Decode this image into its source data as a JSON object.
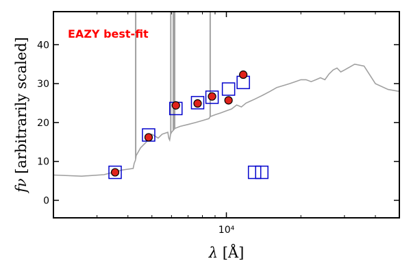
{
  "chart_data": {
    "type": "scatter",
    "title": "",
    "xlabel": "λ [Å]",
    "ylabel": "fν [arbitrarily scaled]",
    "xscale": "log",
    "xlim": [
      2000,
      50000
    ],
    "ylim": [
      -4.5,
      48.5
    ],
    "yticks": [
      0,
      10,
      20,
      30,
      40
    ],
    "xticks": [
      10000
    ],
    "xtick_labels": [
      "10⁴"
    ],
    "grid": false,
    "annotation": "EAZY best-fit",
    "colors": {
      "annotation": "#ff0000",
      "template": "#a0a0a0",
      "model": "#0000cc",
      "observed_fill": "#e0231b",
      "observed_edge": "#000000"
    },
    "series": [
      {
        "kind": "line",
        "x": [
          2000,
          2600,
          3200,
          3800,
          4200,
          4240,
          4290,
          4320,
          4500,
          4750,
          4850,
          5000,
          5300,
          5500,
          5800,
          5850,
          5900,
          5950,
          6000,
          6100,
          6200,
          6500,
          7000,
          7500,
          8000,
          8500,
          8600,
          9000,
          9500,
          10000,
          10500,
          11000,
          11500,
          12000,
          12500,
          13000,
          14000,
          15000,
          16000,
          17000,
          18000,
          19000,
          20000,
          21000,
          22000,
          23000,
          24000,
          25000,
          26000,
          27000,
          28000,
          29000,
          30000,
          33000,
          36000,
          40000,
          45000,
          50000
        ],
        "y": [
          6.5,
          6.2,
          6.6,
          7.8,
          8.2,
          9.5,
          10.3,
          11.5,
          13.5,
          15.0,
          16.0,
          17.0,
          16.0,
          17.0,
          17.5,
          16.0,
          15.5,
          17.0,
          17.5,
          18.0,
          18.5,
          19.0,
          19.5,
          20.0,
          20.5,
          21.0,
          21.5,
          22.0,
          22.5,
          23.0,
          23.5,
          24.5,
          24.0,
          25.0,
          25.5,
          26.0,
          27.0,
          28.0,
          29.0,
          29.5,
          30.0,
          30.5,
          31.0,
          31.0,
          30.5,
          31.0,
          31.5,
          31.0,
          32.5,
          33.5,
          34.0,
          33.0,
          33.5,
          35.0,
          34.5,
          30.0,
          28.5,
          28.0
        ]
      },
      {
        "kind": "emission_lines",
        "x": [
          4300,
          5960,
          6100,
          6180,
          8600
        ],
        "y": [
          48.5,
          48.5,
          48.5,
          48.5,
          48.5
        ]
      },
      {
        "kind": "model_photometry",
        "x": [
          3550,
          4850,
          6250,
          7650,
          8750,
          10200,
          11700,
          13000,
          13900
        ],
        "y": [
          7.2,
          16.8,
          23.6,
          25.1,
          26.5,
          28.6,
          30.3,
          7.2,
          7.2
        ]
      },
      {
        "kind": "observed_photometry",
        "x": [
          3550,
          4850,
          6250,
          7650,
          8750,
          10200,
          11700
        ],
        "y": [
          7.2,
          16.2,
          24.4,
          24.9,
          26.7,
          25.7,
          32.3
        ]
      }
    ]
  }
}
